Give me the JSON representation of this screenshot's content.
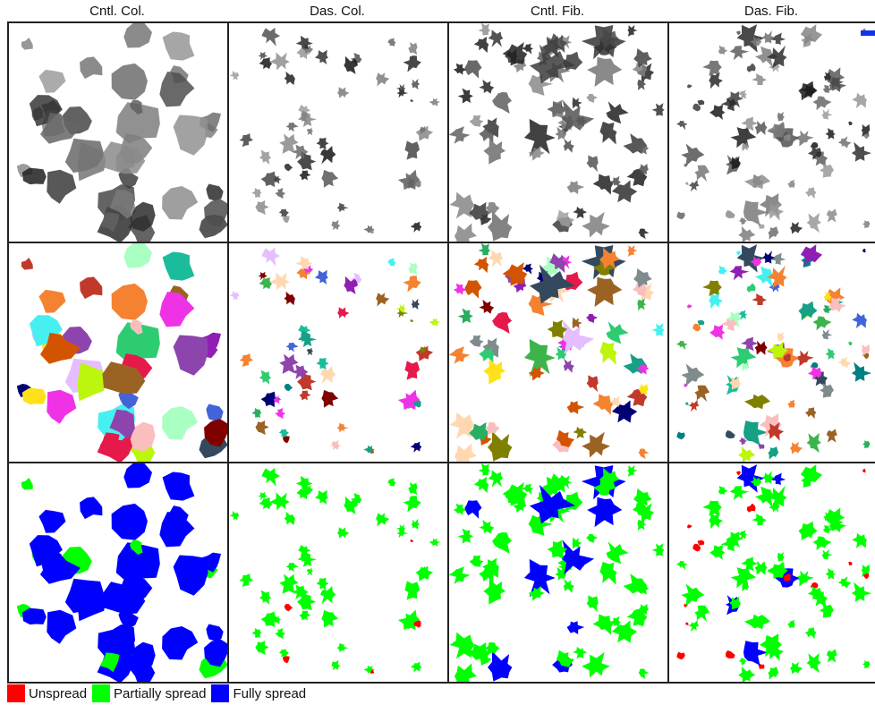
{
  "figure": {
    "columns": [
      {
        "label": "Cntl. Col."
      },
      {
        "label": "Das. Col."
      },
      {
        "label": "Cntl. Fib."
      },
      {
        "label": "Das. Fib."
      }
    ],
    "rows": [
      "raw-grayscale",
      "segmentation-colored",
      "classification"
    ],
    "legend": [
      {
        "label": "Unspread",
        "color": "#ff0000"
      },
      {
        "label": "Partially spread",
        "color": "#00ff00"
      },
      {
        "label": "Fully spread",
        "color": "#0000ff"
      }
    ],
    "scale_bar_color": "#1133ee"
  }
}
